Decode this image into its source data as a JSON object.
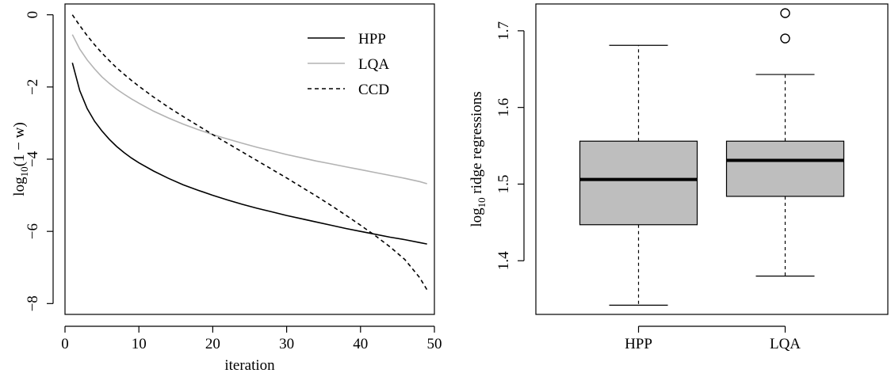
{
  "chart_data": [
    {
      "type": "line",
      "xlabel": "iteration",
      "ylabel_main": "log",
      "ylabel_sub": "10",
      "ylabel_rest": "(1 − w)",
      "xlim": [
        0,
        50
      ],
      "ylim": [
        -8.3,
        0.3
      ],
      "x_ticks": [
        0,
        10,
        20,
        30,
        40,
        50
      ],
      "y_ticks": [
        0,
        -2,
        -4,
        -6,
        -8
      ],
      "x_tick_labels": [
        "0",
        "10",
        "20",
        "30",
        "40",
        "50"
      ],
      "y_tick_labels": [
        "0",
        "−2",
        "−4",
        "−6",
        "−8"
      ],
      "legend_position": "top-right",
      "series": [
        {
          "name": "HPP",
          "color": "#000000",
          "dash": "solid",
          "x": [
            1,
            2,
            3,
            4,
            5,
            6,
            7,
            8,
            9,
            10,
            12,
            14,
            16,
            18,
            20,
            22,
            24,
            26,
            28,
            30,
            32,
            34,
            36,
            38,
            40,
            42,
            44,
            46,
            48,
            49
          ],
          "y": [
            -1.33,
            -2.1,
            -2.6,
            -2.95,
            -3.22,
            -3.45,
            -3.65,
            -3.82,
            -3.97,
            -4.1,
            -4.33,
            -4.53,
            -4.71,
            -4.86,
            -5.0,
            -5.13,
            -5.25,
            -5.36,
            -5.46,
            -5.56,
            -5.65,
            -5.74,
            -5.83,
            -5.92,
            -6.0,
            -6.08,
            -6.16,
            -6.23,
            -6.31,
            -6.35
          ]
        },
        {
          "name": "LQA",
          "color": "#b3b3b3",
          "dash": "solid",
          "x": [
            1,
            2,
            3,
            4,
            5,
            6,
            7,
            8,
            9,
            10,
            12,
            14,
            16,
            18,
            20,
            22,
            24,
            26,
            28,
            30,
            32,
            34,
            36,
            38,
            40,
            42,
            44,
            46,
            48,
            49
          ],
          "y": [
            -0.55,
            -0.95,
            -1.25,
            -1.5,
            -1.72,
            -1.9,
            -2.06,
            -2.2,
            -2.33,
            -2.45,
            -2.67,
            -2.86,
            -3.03,
            -3.18,
            -3.32,
            -3.44,
            -3.56,
            -3.67,
            -3.77,
            -3.87,
            -3.96,
            -4.05,
            -4.13,
            -4.21,
            -4.29,
            -4.37,
            -4.45,
            -4.53,
            -4.62,
            -4.68
          ]
        },
        {
          "name": "CCD",
          "color": "#000000",
          "dash": "dashed",
          "x": [
            1,
            2,
            3,
            4,
            5,
            6,
            7,
            8,
            9,
            10,
            12,
            14,
            16,
            18,
            20,
            22,
            24,
            26,
            28,
            30,
            32,
            34,
            36,
            38,
            40,
            42,
            44,
            46,
            48,
            49
          ],
          "y": [
            0.0,
            -0.3,
            -0.58,
            -0.83,
            -1.06,
            -1.27,
            -1.47,
            -1.65,
            -1.82,
            -1.98,
            -2.28,
            -2.56,
            -2.82,
            -3.07,
            -3.32,
            -3.56,
            -3.8,
            -4.04,
            -4.28,
            -4.52,
            -4.77,
            -5.02,
            -5.28,
            -5.55,
            -5.83,
            -6.12,
            -6.43,
            -6.78,
            -7.28,
            -7.62
          ]
        }
      ]
    },
    {
      "type": "box",
      "xlabel": "",
      "ylabel_main": "log",
      "ylabel_sub": "10",
      "ylabel_rest": " ridge regressions",
      "ylim": [
        1.33,
        1.735
      ],
      "y_ticks": [
        1.4,
        1.5,
        1.6,
        1.7
      ],
      "y_tick_labels": [
        "1.4",
        "1.5",
        "1.6",
        "1.7"
      ],
      "categories": [
        "HPP",
        "LQA"
      ],
      "box_fill": "#bebebe",
      "boxes": [
        {
          "name": "HPP",
          "min": 1.342,
          "q1": 1.447,
          "median": 1.506,
          "q3": 1.556,
          "max": 1.681,
          "outliers": []
        },
        {
          "name": "LQA",
          "min": 1.38,
          "q1": 1.484,
          "median": 1.531,
          "q3": 1.556,
          "max": 1.643,
          "outliers": [
            1.69,
            1.723
          ]
        }
      ]
    }
  ]
}
